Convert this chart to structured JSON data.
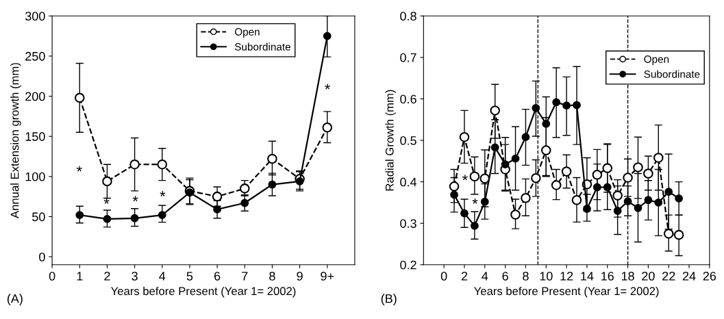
{
  "chart_data": [
    {
      "type": "line",
      "xlabel": "Years before Present (Year 1= 2002)",
      "ylabel": "Annual Extension growth (mm)",
      "x": [
        1,
        2,
        3,
        4,
        5,
        6,
        7,
        8,
        9,
        10
      ],
      "xlim": [
        0,
        11
      ],
      "xticks": [
        0,
        1,
        2,
        3,
        4,
        5,
        6,
        7,
        8,
        9,
        {
          "value": 10,
          "label": "9+"
        }
      ],
      "ylim": [
        -10,
        300
      ],
      "yticks": [
        0,
        50,
        100,
        150,
        200,
        250,
        300
      ],
      "grid": false,
      "legend": "top right",
      "marker": "circle",
      "series": [
        {
          "name": "Open",
          "color": "#000000",
          "line_style": "dashed",
          "values": [
            198,
            94,
            115,
            115,
            82,
            75,
            85,
            122,
            97,
            161
          ],
          "errors": [
            [
              155,
              241
            ],
            [
              73,
              115
            ],
            [
              82,
              148
            ],
            [
              95,
              135
            ],
            [
              66,
              98
            ],
            [
              63,
              87
            ],
            [
              76,
              95
            ],
            [
              102,
              144
            ],
            [
              84,
              107
            ],
            [
              142,
              181
            ]
          ]
        },
        {
          "name": "Subordinate",
          "color": "#000000",
          "line_style": "solid",
          "values": [
            52,
            47,
            48,
            52,
            80,
            59,
            67,
            90,
            94,
            275
          ],
          "errors": [
            [
              42,
              63
            ],
            [
              37,
              58
            ],
            [
              38,
              60
            ],
            [
              43,
              64
            ],
            [
              65,
              96
            ],
            [
              48,
              70
            ],
            [
              57,
              77
            ],
            [
              76,
              104
            ],
            [
              82,
              106
            ],
            [
              249,
              300
            ]
          ]
        }
      ],
      "annotations": [
        "*",
        "*",
        "*",
        "*",
        "*",
        "(A)"
      ]
    },
    {
      "type": "line",
      "xlabel": "Years before Present (Year 1= 2002)",
      "ylabel": "Radial Growth (mm)",
      "x": [
        1,
        2,
        3,
        4,
        5,
        6,
        7,
        8,
        9,
        10,
        11,
        12,
        13,
        14,
        15,
        16,
        17,
        18,
        19,
        20,
        21,
        22,
        23
      ],
      "xlim": [
        -2,
        26
      ],
      "xticks": [
        0,
        2,
        4,
        6,
        8,
        10,
        12,
        14,
        16,
        18,
        20,
        22,
        24,
        26
      ],
      "ylim": [
        0.2,
        0.8
      ],
      "yticks": [
        0.2,
        0.3,
        0.4,
        0.5,
        0.6,
        0.7,
        0.8
      ],
      "grid": false,
      "legend": "top right",
      "marker": "circle",
      "ref_lines": [
        {
          "axis": "x",
          "value": 9.2,
          "label": null,
          "line_style": "dashed"
        },
        {
          "axis": "x",
          "value": 18,
          "label": null,
          "line_style": "dashed"
        }
      ],
      "series": [
        {
          "name": "Open",
          "color": "#000000",
          "line_style": "dashed",
          "values": [
            0.389,
            0.508,
            0.413,
            0.408,
            0.572,
            0.43,
            0.321,
            0.361,
            0.409,
            0.476,
            0.392,
            0.425,
            0.356,
            0.394,
            0.417,
            0.433,
            0.367,
            0.41,
            0.435,
            0.42,
            0.458,
            0.275,
            0.272
          ],
          "errors": [
            [
              0.35,
              0.43
            ],
            [
              0.445,
              0.572
            ],
            [
              0.37,
              0.46
            ],
            [
              0.34,
              0.477
            ],
            [
              0.505,
              0.635
            ],
            [
              0.38,
              0.49
            ],
            [
              0.287,
              0.358
            ],
            [
              0.318,
              0.407
            ],
            [
              0.365,
              0.453
            ],
            [
              0.415,
              0.555
            ],
            [
              0.357,
              0.43
            ],
            [
              0.385,
              0.465
            ],
            [
              0.303,
              0.41
            ],
            [
              0.33,
              0.458
            ],
            [
              0.357,
              0.478
            ],
            [
              0.375,
              0.49
            ],
            [
              0.315,
              0.405
            ],
            [
              0.365,
              0.455
            ],
            [
              0.36,
              0.508
            ],
            [
              0.38,
              0.462
            ],
            [
              0.38,
              0.537
            ],
            [
              0.233,
              0.32
            ],
            [
              0.222,
              0.32
            ]
          ]
        },
        {
          "name": "Subordinate",
          "color": "#000000",
          "line_style": "solid",
          "values": [
            0.369,
            0.324,
            0.294,
            0.352,
            0.483,
            0.442,
            0.456,
            0.508,
            0.578,
            0.54,
            0.592,
            0.584,
            0.585,
            0.335,
            0.387,
            0.387,
            0.33,
            0.353,
            0.337,
            0.356,
            0.35,
            0.376,
            0.36
          ],
          "errors": [
            [
              0.327,
              0.41
            ],
            [
              0.29,
              0.358
            ],
            [
              0.262,
              0.328
            ],
            [
              0.31,
              0.395
            ],
            [
              0.42,
              0.55
            ],
            [
              0.378,
              0.507
            ],
            [
              0.38,
              0.533
            ],
            [
              0.44,
              0.575
            ],
            [
              0.51,
              0.643
            ],
            [
              0.413,
              0.605
            ],
            [
              0.507,
              0.675
            ],
            [
              0.512,
              0.653
            ],
            [
              0.49,
              0.678
            ],
            [
              0.305,
              0.37
            ],
            [
              0.33,
              0.443
            ],
            [
              0.333,
              0.492
            ],
            [
              0.273,
              0.39
            ],
            [
              0.318,
              0.39
            ],
            [
              0.255,
              0.42
            ],
            [
              0.308,
              0.403
            ],
            [
              0.27,
              0.43
            ],
            [
              0.286,
              0.467
            ],
            [
              0.32,
              0.4
            ]
          ]
        }
      ],
      "annotations": [
        "*",
        "*",
        "(B)"
      ]
    }
  ]
}
